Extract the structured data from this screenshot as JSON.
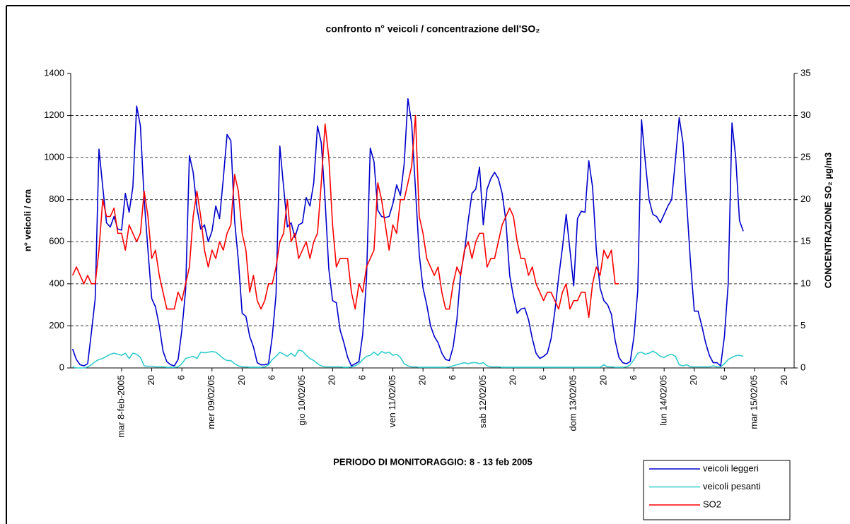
{
  "chart_data": {
    "type": "line",
    "title": "confronto n° veicoli / concentrazione dell'SO₂",
    "x_label": "PERIODO DI MONITORAGGIO: 8 - 13 feb 2005",
    "y_label": "n° veicoli / ora",
    "y2_label": "CONCENTRAZIONE SO₂ µg/m3",
    "ylim": [
      0,
      1400
    ],
    "yticks": [
      0,
      200,
      400,
      600,
      800,
      1000,
      1200,
      1400
    ],
    "y2lim": [
      0,
      35
    ],
    "y2ticks": [
      0,
      5,
      10,
      15,
      20,
      25,
      30,
      35
    ],
    "grid": true,
    "legend": "lower right",
    "categories": [
      null,
      null,
      null,
      null,
      null,
      null,
      null,
      null,
      null,
      null,
      null,
      null,
      null,
      "mar 8-feb-2005",
      null,
      null,
      null,
      null,
      null,
      null,
      null,
      "20",
      null,
      null,
      null,
      null,
      null,
      null,
      null,
      "6",
      null,
      null,
      null,
      null,
      null,
      null,
      null,
      "mer 09/02/05",
      null,
      null,
      null,
      null,
      null,
      null,
      null,
      "20",
      null,
      null,
      null,
      null,
      null,
      null,
      null,
      "6",
      null,
      null,
      null,
      null,
      null,
      null,
      null,
      "gio 10/02/05",
      null,
      null,
      null,
      null,
      null,
      null,
      null,
      "20",
      null,
      null,
      null,
      null,
      null,
      null,
      null,
      "6",
      null,
      null,
      null,
      null,
      null,
      null,
      null,
      "ven 11/02/05",
      null,
      null,
      null,
      null,
      null,
      null,
      null,
      "20",
      null,
      null,
      null,
      null,
      null,
      null,
      null,
      "6",
      null,
      null,
      null,
      null,
      null,
      null,
      null,
      "sab 12/02/05",
      null,
      null,
      null,
      null,
      null,
      null,
      null,
      "20",
      null,
      null,
      null,
      null,
      null,
      null,
      null,
      "6",
      null,
      null,
      null,
      null,
      null,
      null,
      null,
      "dom 13/02/05",
      null,
      null,
      null,
      null,
      null,
      null,
      null,
      "20",
      null,
      null,
      null,
      null,
      null,
      null,
      null,
      "6",
      null,
      null,
      null,
      null,
      null,
      null,
      null,
      "lun 14/02/05",
      null,
      null,
      null,
      null,
      null,
      null,
      null,
      "20",
      null,
      null,
      null,
      null,
      null,
      null,
      null,
      "6",
      null,
      null,
      null,
      null,
      null,
      null,
      null,
      "mar 15/02/05",
      null,
      null,
      null,
      null,
      null,
      null,
      null,
      "20",
      null,
      null
    ],
    "series": [
      {
        "name": "veicoli leggeri",
        "color": "#0000cc",
        "values": [
          90,
          40,
          15,
          10,
          20,
          170,
          330,
          1040,
          860,
          690,
          670,
          720,
          660,
          655,
          830,
          740,
          860,
          1245,
          1150,
          800,
          560,
          330,
          290,
          200,
          80,
          30,
          15,
          10,
          40,
          180,
          370,
          1010,
          930,
          760,
          660,
          680,
          600,
          650,
          770,
          710,
          900,
          1110,
          1080,
          700,
          510,
          260,
          245,
          150,
          100,
          25,
          15,
          15,
          20,
          150,
          350,
          1055,
          860,
          670,
          690,
          620,
          680,
          690,
          810,
          770,
          880,
          1150,
          1070,
          800,
          470,
          320,
          310,
          180,
          120,
          50,
          10,
          20,
          30,
          160,
          420,
          1045,
          980,
          750,
          720,
          715,
          720,
          780,
          870,
          820,
          970,
          1280,
          1160,
          850,
          540,
          380,
          300,
          200,
          150,
          120,
          70,
          40,
          35,
          100,
          230,
          450,
          550,
          700,
          830,
          850,
          955,
          680,
          850,
          900,
          930,
          900,
          830,
          700,
          440,
          340,
          260,
          280,
          285,
          230,
          140,
          70,
          45,
          55,
          70,
          140,
          270,
          430,
          570,
          730,
          560,
          390,
          710,
          745,
          740,
          985,
          860,
          560,
          380,
          320,
          300,
          255,
          130,
          50,
          25,
          20,
          30,
          150,
          370,
          1180,
          980,
          800,
          730,
          720,
          690,
          730,
          770,
          800,
          990,
          1190,
          1070,
          780,
          500,
          270,
          270,
          200,
          120,
          60,
          25,
          25,
          10,
          150,
          400,
          1165,
          1000,
          700,
          650,
          null,
          null,
          null,
          null,
          null,
          null,
          null,
          null,
          null,
          null,
          null,
          null,
          null
        ]
      },
      {
        "name": "veicoli pesanti",
        "color": "#33cccc",
        "values": [
          5,
          0,
          0,
          0,
          5,
          15,
          30,
          40,
          45,
          55,
          65,
          70,
          65,
          60,
          70,
          45,
          70,
          65,
          50,
          10,
          8,
          8,
          5,
          5,
          5,
          3,
          3,
          3,
          5,
          20,
          45,
          50,
          55,
          45,
          75,
          72,
          75,
          78,
          75,
          60,
          45,
          35,
          35,
          20,
          10,
          5,
          5,
          3,
          3,
          3,
          3,
          5,
          15,
          40,
          55,
          75,
          65,
          55,
          70,
          55,
          85,
          80,
          60,
          45,
          35,
          20,
          10,
          5,
          5,
          5,
          5,
          5,
          3,
          3,
          5,
          10,
          20,
          40,
          55,
          60,
          75,
          60,
          78,
          70,
          75,
          60,
          65,
          50,
          20,
          10,
          5,
          5,
          3,
          3,
          3,
          3,
          3,
          3,
          3,
          3,
          5,
          10,
          15,
          20,
          25,
          20,
          25,
          25,
          20,
          25,
          10,
          5,
          5,
          5,
          3,
          3,
          3,
          3,
          3,
          3,
          3,
          3,
          3,
          3,
          3,
          3,
          3,
          3,
          3,
          3,
          3,
          3,
          3,
          3,
          3,
          3,
          3,
          3,
          3,
          3,
          3,
          15,
          5,
          5,
          3,
          3,
          3,
          5,
          15,
          40,
          70,
          75,
          65,
          70,
          80,
          70,
          55,
          50,
          60,
          65,
          55,
          15,
          10,
          15,
          5,
          5,
          5,
          5,
          5,
          5,
          10,
          5,
          5,
          20,
          40,
          50,
          58,
          60,
          55,
          null,
          null,
          null,
          null,
          null,
          null,
          null,
          null,
          null,
          null,
          null,
          null,
          null
        ]
      },
      {
        "name": "SO2",
        "color": "#ff0000",
        "axis": "y2",
        "values": [
          11,
          12,
          11,
          10,
          11,
          10,
          10,
          14,
          20,
          18,
          18,
          19,
          16,
          16,
          14,
          17,
          16,
          15,
          16,
          21,
          18,
          13,
          14,
          11,
          9,
          7,
          7,
          7,
          9,
          8,
          10,
          12,
          18,
          21,
          18,
          14,
          12,
          14,
          13,
          15,
          14,
          16,
          17,
          23,
          21,
          16,
          14,
          9,
          11,
          8,
          7,
          8,
          10,
          10,
          12,
          15,
          16,
          20,
          15,
          16,
          13,
          14,
          15,
          13,
          15,
          16,
          22,
          29,
          25,
          17,
          12,
          13,
          13,
          13,
          9,
          7,
          10,
          9,
          12,
          13,
          14,
          22,
          20,
          17,
          14,
          17,
          16,
          20,
          20,
          22,
          24,
          30,
          18,
          16,
          13,
          12,
          11,
          12,
          9,
          7,
          7,
          10,
          12,
          11,
          14,
          15,
          13,
          15,
          16,
          16,
          12,
          13,
          13,
          15,
          17,
          18,
          19,
          18,
          15,
          13,
          13,
          11,
          12,
          10,
          9,
          8,
          9,
          9,
          8,
          7,
          9,
          10,
          7,
          8,
          8,
          9,
          9,
          6,
          10,
          12,
          11,
          14,
          13,
          14,
          10,
          10,
          null,
          null,
          null,
          null,
          null,
          null,
          null,
          null,
          null,
          null,
          null,
          null,
          null,
          null,
          null,
          null,
          null,
          null,
          null,
          null,
          null,
          null,
          null,
          null,
          null,
          null,
          null,
          null,
          null,
          null,
          null,
          null,
          null,
          null,
          null,
          null,
          null,
          null,
          null,
          null,
          null,
          null,
          null,
          null,
          null,
          null
        ]
      }
    ]
  }
}
